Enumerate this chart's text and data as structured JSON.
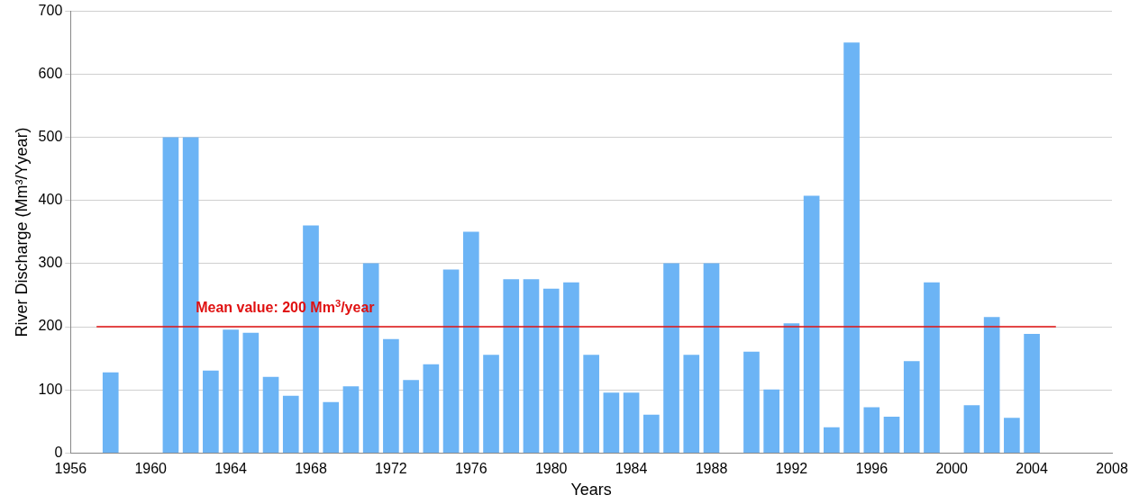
{
  "chart_data": {
    "type": "bar",
    "xlabel": "Years",
    "ylabel": "River Discharge (Mm³/Yyear)",
    "x": [
      1958,
      1961,
      1962,
      1963,
      1964,
      1965,
      1966,
      1967,
      1968,
      1969,
      1970,
      1971,
      1972,
      1973,
      1974,
      1975,
      1976,
      1977,
      1978,
      1979,
      1980,
      1981,
      1982,
      1983,
      1984,
      1985,
      1986,
      1987,
      1988,
      1990,
      1991,
      1992,
      1993,
      1994,
      1995,
      1996,
      1997,
      1998,
      1999,
      2001,
      2002,
      2003,
      2004
    ],
    "values": [
      127,
      500,
      500,
      130,
      195,
      190,
      120,
      90,
      360,
      80,
      105,
      300,
      180,
      115,
      140,
      290,
      350,
      155,
      275,
      275,
      260,
      270,
      155,
      95,
      95,
      60,
      300,
      155,
      300,
      160,
      100,
      205,
      407,
      40,
      650,
      72,
      57,
      145,
      270,
      75,
      215,
      55,
      188
    ],
    "color": "#6cb4f5",
    "xlim": [
      1956,
      2008
    ],
    "xticks": [
      1956,
      1960,
      1964,
      1968,
      1972,
      1976,
      1980,
      1984,
      1988,
      1992,
      1996,
      2000,
      2004,
      2008
    ],
    "ylim": [
      0,
      700
    ],
    "yticks": [
      0,
      100,
      200,
      300,
      400,
      500,
      600,
      700
    ],
    "grid": "y",
    "ref_lines": [
      {
        "axis": "y",
        "value": 200,
        "label": "Mean value: 200 Mm$^{3}$/year",
        "color": "#e01010"
      }
    ]
  }
}
